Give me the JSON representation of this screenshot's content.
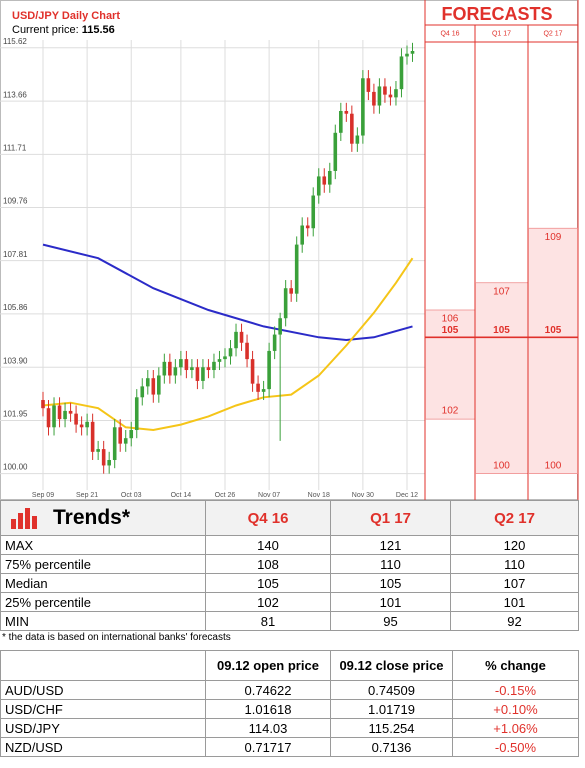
{
  "chart_data": {
    "type": "candlestick",
    "title": "USD/JPY Daily Chart",
    "current_price_label": "Current price:",
    "current_price": 115.56,
    "categories": [
      "Sep 09",
      null,
      null,
      null,
      null,
      null,
      null,
      null,
      "Sep 21",
      null,
      null,
      null,
      null,
      null,
      null,
      null,
      "Oct 03",
      null,
      null,
      null,
      null,
      null,
      null,
      null,
      null,
      "Oct 14",
      null,
      null,
      null,
      null,
      null,
      null,
      null,
      "Oct 26",
      null,
      null,
      null,
      null,
      null,
      null,
      null,
      "Nov 07",
      null,
      null,
      null,
      null,
      null,
      null,
      null,
      null,
      "Nov 18",
      null,
      null,
      null,
      null,
      null,
      null,
      null,
      "Nov 30",
      null,
      null,
      null,
      null,
      null,
      null,
      null,
      "Dec 12",
      null
    ],
    "open": [
      102.7,
      102.4,
      101.7,
      102.5,
      102.0,
      102.3,
      102.2,
      101.8,
      101.7,
      101.9,
      100.8,
      100.9,
      100.3,
      100.5,
      101.7,
      101.1,
      101.3,
      101.6,
      102.8,
      103.2,
      103.5,
      102.9,
      103.6,
      104.1,
      103.6,
      103.9,
      104.2,
      103.8,
      103.9,
      103.4,
      103.9,
      103.8,
      104.1,
      104.2,
      104.3,
      104.6,
      105.2,
      104.8,
      104.2,
      103.3,
      103.0,
      103.1,
      104.5,
      105.1,
      105.7,
      106.8,
      106.6,
      108.4,
      109.1,
      109.0,
      110.2,
      110.9,
      110.6,
      111.1,
      112.5,
      113.3,
      113.2,
      112.1,
      112.4,
      114.5,
      114.0,
      113.5,
      114.2,
      113.9,
      113.8,
      114.1,
      115.3,
      115.4
    ],
    "high": [
      103.0,
      102.7,
      102.8,
      102.8,
      102.6,
      102.6,
      102.5,
      102.1,
      102.2,
      102.2,
      101.2,
      101.2,
      100.8,
      102.0,
      102.0,
      101.6,
      101.9,
      103.1,
      103.5,
      103.8,
      103.8,
      103.9,
      104.4,
      104.4,
      104.2,
      104.5,
      104.5,
      104.2,
      104.2,
      104.2,
      104.2,
      104.4,
      104.5,
      104.6,
      104.9,
      105.5,
      105.5,
      105.1,
      104.5,
      103.6,
      103.4,
      104.8,
      105.4,
      105.9,
      107.1,
      107.1,
      108.7,
      109.4,
      109.4,
      110.5,
      111.2,
      111.2,
      111.4,
      112.8,
      113.6,
      113.6,
      113.5,
      112.7,
      114.8,
      114.8,
      114.3,
      114.5,
      114.5,
      114.2,
      114.4,
      115.6,
      115.7,
      115.8
    ],
    "low": [
      102.1,
      101.4,
      101.4,
      101.7,
      101.7,
      101.9,
      101.5,
      101.4,
      101.4,
      100.5,
      100.5,
      100.0,
      100.0,
      100.2,
      100.8,
      100.8,
      101.0,
      101.3,
      102.5,
      102.9,
      102.6,
      102.6,
      103.3,
      103.3,
      103.3,
      103.6,
      103.5,
      103.5,
      103.1,
      103.1,
      103.5,
      103.5,
      103.8,
      103.9,
      104.0,
      104.3,
      104.5,
      103.9,
      103.0,
      102.7,
      102.7,
      102.8,
      104.2,
      101.2,
      105.4,
      106.3,
      106.3,
      108.1,
      108.7,
      108.7,
      109.9,
      110.3,
      110.3,
      110.8,
      112.2,
      112.9,
      111.8,
      111.8,
      112.1,
      113.7,
      113.2,
      113.2,
      113.6,
      113.5,
      113.5,
      113.8,
      115.0,
      115.1
    ],
    "close": [
      102.4,
      101.7,
      102.5,
      102.0,
      102.3,
      102.2,
      101.8,
      101.7,
      101.9,
      100.8,
      100.9,
      100.3,
      100.5,
      101.7,
      101.1,
      101.3,
      101.6,
      102.8,
      103.2,
      103.5,
      102.9,
      103.6,
      104.1,
      103.6,
      103.9,
      104.2,
      103.8,
      103.9,
      103.4,
      103.9,
      103.8,
      104.1,
      104.2,
      104.3,
      104.6,
      105.2,
      104.8,
      104.2,
      103.3,
      103.0,
      103.1,
      104.5,
      105.1,
      105.7,
      106.8,
      106.6,
      108.4,
      109.1,
      109.0,
      110.2,
      110.9,
      110.6,
      111.1,
      112.5,
      113.3,
      113.2,
      112.1,
      112.4,
      114.5,
      114.0,
      113.5,
      114.2,
      113.9,
      113.8,
      114.1,
      115.3,
      115.4,
      115.5
    ],
    "up_color": "#3aa03a",
    "down_color": "#d8302a",
    "moving_averages": [
      {
        "color": "#2b2bc8",
        "x": [
          0,
          10,
          20,
          30,
          40,
          50,
          55,
          60,
          67
        ],
        "values": [
          108.4,
          107.9,
          106.8,
          106.0,
          105.4,
          105.0,
          104.9,
          105.0,
          105.4
        ]
      },
      {
        "color": "#f5c518",
        "x": [
          0,
          5,
          10,
          15,
          20,
          25,
          30,
          35,
          40,
          45,
          50,
          55,
          60,
          64,
          67
        ],
        "values": [
          102.5,
          102.6,
          102.4,
          101.7,
          101.6,
          101.8,
          102.1,
          102.5,
          102.8,
          102.9,
          103.6,
          104.7,
          105.9,
          107.0,
          107.9
        ]
      }
    ],
    "ylim": [
      99.4,
      115.72
    ],
    "yticks": [
      {
        "value": 100,
        "label": "100.00"
      },
      101.95,
      {
        "value": 103.9,
        "label": "103.90"
      },
      105.86,
      107.81,
      109.76,
      111.71,
      113.66,
      115.62
    ],
    "grid": true
  },
  "forecasts": {
    "title": "FORECASTS",
    "columns": [
      "Q4 16",
      "Q1 17",
      "Q2 17"
    ],
    "high": [
      106,
      107,
      109
    ],
    "low": [
      102,
      100,
      100
    ],
    "median": [
      105,
      105,
      105
    ],
    "color": "#e0312b",
    "fill": "#fde3e3"
  },
  "trends": {
    "title": "Trends*",
    "columns": [
      "Q4 16",
      "Q1 17",
      "Q2 17"
    ],
    "rows": [
      [
        "MAX",
        140,
        121,
        120
      ],
      [
        "75% percentile",
        108,
        110,
        110
      ],
      [
        "Median",
        105,
        105,
        107
      ],
      [
        "25% percentile",
        102,
        101,
        101
      ],
      [
        "MIN",
        81,
        95,
        92
      ]
    ],
    "footnote": "* the data is based on international banks' forecasts"
  },
  "prices": {
    "columns": [
      "09.12 open price",
      "09.12 close price",
      "% change"
    ],
    "rows": [
      [
        "AUD/USD",
        0.74622,
        0.74509,
        "-0.15%"
      ],
      [
        "USD/CHF",
        1.01618,
        1.01719,
        "+0.10%"
      ],
      [
        "USD/JPY",
        114.03,
        115.254,
        "+1.06%"
      ],
      [
        "NZD/USD",
        0.71717,
        0.7136,
        "-0.50%"
      ]
    ]
  }
}
